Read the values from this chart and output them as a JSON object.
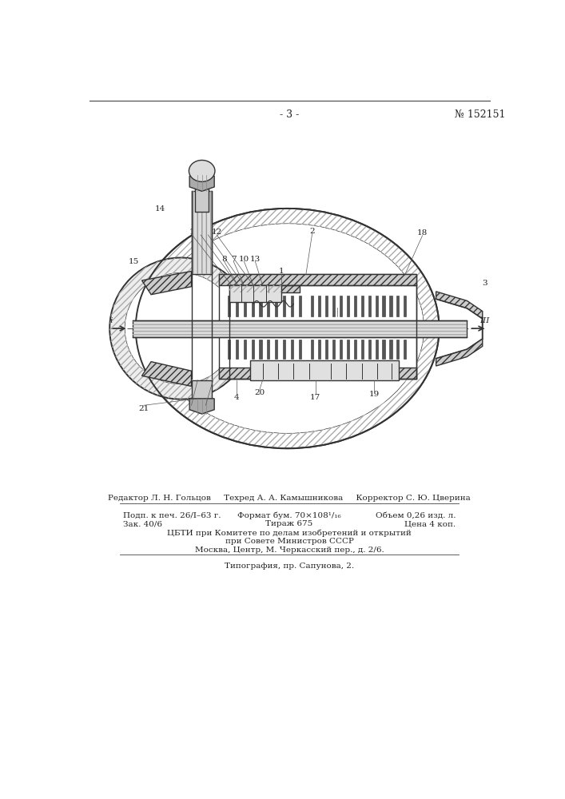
{
  "page_number": "- 3 -",
  "patent_number": "№ 152151",
  "bg_color": "#ffffff",
  "header_line_color": "#444444",
  "text_color": "#222222",
  "footer_line1": "Редактор Л. Н. Гольцов     Техред А. А. Камышникова     Корректор С. Ю. Цверина",
  "footer_col1_line1": "Подп. к печ. 26/I–63 г.",
  "footer_col1_line2": "Зак. 40/6",
  "footer_col2_line1": "Формат бум. 70×108¹/₁₆",
  "footer_col2_line2": "Тираж 675",
  "footer_col3_line1": "Объем 0,26 изд. л.",
  "footer_col3_line2": "Цена 4 коп.",
  "footer_cbti_line1": "ЦБТИ при Комитете по делам изобретений и открытий",
  "footer_cbti_line2": "при Совете Министров СССР",
  "footer_cbti_line3": "Москва, Центр, М. Черкасский пер., д. 2/6.",
  "footer_typography": "Типография, пр. Сапунова, 2."
}
